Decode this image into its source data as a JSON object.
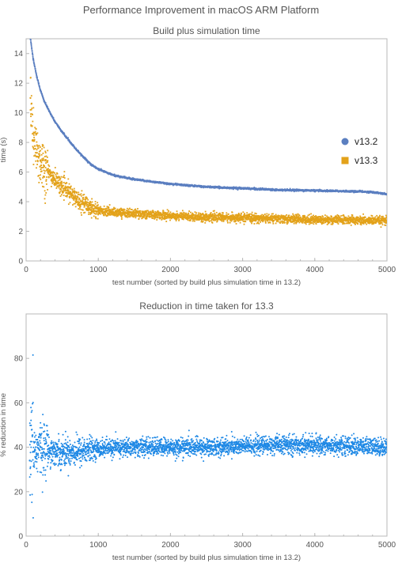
{
  "page_title": "Performance Improvement in macOS ARM Platform",
  "colors": {
    "v13_2": "#5b7fc0",
    "v13_3": "#e3a21a",
    "reduction": "#1e88e5",
    "frame": "#b8b8b8",
    "text": "#555555"
  },
  "chart_data": [
    {
      "type": "scatter",
      "title": "Build plus simulation time",
      "xlabel": "test number (sorted by build plus simulation time in 13.2)",
      "ylabel": "time (s)",
      "xlim": [
        0,
        5000
      ],
      "ylim": [
        0,
        15
      ],
      "xticks": [
        "0",
        "1000",
        "2000",
        "3000",
        "4000",
        "5000"
      ],
      "yticks": [
        "0",
        "2",
        "4",
        "6",
        "8",
        "10",
        "12",
        "14"
      ],
      "legend_position": "right",
      "series": [
        {
          "name": "v13.2",
          "marker": "circle",
          "color": "#5b7fc0",
          "x": [
            60,
            100,
            150,
            200,
            250,
            300,
            400,
            500,
            600,
            700,
            800,
            900,
            1000,
            1200,
            1500,
            2000,
            2500,
            3000,
            3500,
            4000,
            4500,
            4800,
            5000
          ],
          "y": [
            15,
            13.6,
            12.4,
            11.5,
            10.8,
            10.3,
            9.4,
            8.7,
            8.1,
            7.5,
            7.0,
            6.5,
            6.2,
            5.8,
            5.5,
            5.2,
            5.0,
            4.9,
            4.8,
            4.75,
            4.7,
            4.65,
            4.5
          ]
        },
        {
          "name": "v13.3",
          "marker": "square",
          "color": "#e3a21a",
          "x": [
            60,
            100,
            150,
            200,
            250,
            300,
            400,
            500,
            600,
            700,
            800,
            900,
            1000,
            1200,
            1500,
            2000,
            2500,
            3000,
            3500,
            4000,
            4500,
            5000
          ],
          "y": [
            11,
            8.1,
            7.3,
            6.8,
            6.4,
            6.0,
            5.5,
            5.0,
            4.6,
            4.2,
            3.9,
            3.6,
            3.4,
            3.3,
            3.2,
            3.05,
            2.95,
            2.9,
            2.85,
            2.8,
            2.75,
            2.7
          ]
        }
      ]
    },
    {
      "type": "scatter",
      "title": "Reduction in time taken for 13.3",
      "xlabel": "test number (sorted by build plus simulation time in 13.2)",
      "ylabel": "% reduction in time",
      "xlim": [
        0,
        5000
      ],
      "ylim": [
        0,
        100
      ],
      "xticks": [
        "0",
        "1000",
        "2000",
        "3000",
        "4000",
        "5000"
      ],
      "yticks": [
        "0",
        "20",
        "40",
        "60",
        "80"
      ],
      "series": [
        {
          "color": "#1e88e5",
          "x": [
            50,
            100,
            200,
            300,
            400,
            500,
            600,
            700,
            800,
            1000,
            1500,
            2000,
            2500,
            3000,
            3500,
            4000,
            4500,
            5000
          ],
          "y": [
            34,
            38,
            40,
            39,
            38,
            38,
            38,
            38,
            38.5,
            39.5,
            40,
            40,
            40,
            40.5,
            41,
            41,
            40.5,
            40
          ]
        }
      ]
    }
  ]
}
